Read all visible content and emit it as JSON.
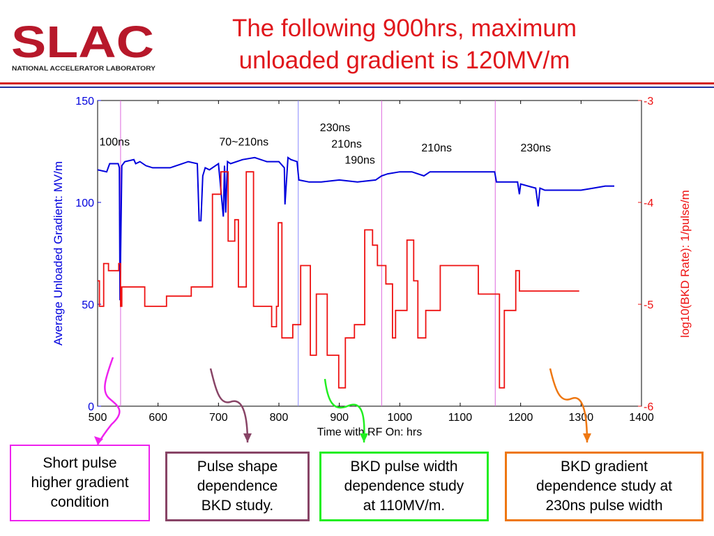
{
  "header": {
    "title_line1": "The following 900hrs, maximum",
    "title_line2": "unloaded gradient is 120MV/m",
    "logo_text": "SLAC",
    "logo_subtext": "NATIONAL ACCELERATOR LABORATORY"
  },
  "callouts": [
    {
      "text": "Short pulse\nhigher gradient\ncondition",
      "color": "#ee22ee"
    },
    {
      "text": "Pulse shape\ndependence\nBKD study.",
      "color": "#884466"
    },
    {
      "text": "BKD pulse width\ndependence study\nat 110MV/m.",
      "color": "#22ee22"
    },
    {
      "text": "BKD gradient\ndependence study at\n230ns pulse width",
      "color": "#ee7711"
    }
  ],
  "chart_data": {
    "type": "line",
    "title": "",
    "xlabel": "Time with RF On: hrs",
    "ylabel": "Average Unloaded Gradient: MV/m",
    "y2label": "log10(BKD Rate): 1/pulse/m",
    "xlim": [
      500,
      1400
    ],
    "ylim": [
      0,
      150
    ],
    "y2lim": [
      -6,
      -3
    ],
    "x_ticks": [
      500,
      600,
      700,
      800,
      900,
      1000,
      1100,
      1200,
      1300,
      1400
    ],
    "y_ticks": [
      0,
      50,
      100,
      150
    ],
    "y2_ticks": [
      -6,
      -5,
      -4,
      -3
    ],
    "x_tick_labels": [
      "500",
      "600",
      "700",
      "800",
      "900",
      "1000",
      "1100",
      "1200",
      "1300",
      "1400"
    ],
    "y_tick_labels": [
      "0",
      "50",
      "100",
      "150"
    ],
    "y2_tick_labels": [
      "-6",
      "-5",
      "-4",
      "-3"
    ],
    "grid": false,
    "colors": {
      "gradient": "#0000dd",
      "bkd": "#ee1111",
      "blue_marker": "#8888ff",
      "magenta_marker": "#dd66dd"
    },
    "annotations": [
      {
        "text": "100ns",
        "x": 528,
        "y": 130
      },
      {
        "text": "70~210ns",
        "x": 742,
        "y": 130
      },
      {
        "text": "230ns",
        "x": 893,
        "y": 137
      },
      {
        "text": "210ns",
        "x": 912,
        "y": 129
      },
      {
        "text": "190ns",
        "x": 934,
        "y": 121
      },
      {
        "text": "210ns",
        "x": 1061,
        "y": 127
      },
      {
        "text": "230ns",
        "x": 1225,
        "y": 127
      }
    ],
    "vertical_markers": [
      {
        "x": 538,
        "color": "magenta"
      },
      {
        "x": 832,
        "color": "blue"
      },
      {
        "x": 970,
        "color": "magenta"
      },
      {
        "x": 1158,
        "color": "magenta"
      }
    ],
    "series": [
      {
        "name": "Average Unloaded Gradient",
        "axis": "left",
        "x": [
          500,
          515,
          520,
          534,
          536,
          537,
          540,
          545,
          560,
          563,
          570,
          580,
          591,
          593,
          610,
          620,
          650,
          665,
          668,
          671,
          674,
          678,
          685,
          700,
          708,
          710,
          712,
          715,
          720,
          740,
          760,
          780,
          800,
          809,
          810,
          815,
          820,
          830,
          833,
          850,
          870,
          900,
          930,
          960,
          970,
          980,
          1000,
          1020,
          1040,
          1050,
          1100,
          1150,
          1157,
          1160,
          1180,
          1195,
          1198,
          1200,
          1225,
          1229,
          1232,
          1240,
          1260,
          1280,
          1300,
          1320,
          1340,
          1355
        ],
        "y": [
          116,
          115,
          119,
          119,
          117,
          52,
          118,
          120,
          121,
          119,
          120,
          118,
          117,
          117,
          117,
          117,
          120,
          119,
          91,
          91,
          113,
          117,
          116,
          119,
          93,
          118,
          95,
          120,
          119,
          121,
          122,
          120,
          120,
          117,
          99,
          122,
          121,
          120,
          111,
          110,
          110,
          111,
          110,
          111,
          113,
          114,
          115,
          115,
          113,
          115,
          115,
          115,
          115,
          110,
          110,
          110,
          104,
          109,
          107,
          98,
          107,
          106,
          106,
          106,
          106,
          107,
          108,
          108
        ]
      },
      {
        "name": "log10(BKD Rate)",
        "axis": "right",
        "x": [
          500,
          503,
          503,
          510,
          510,
          518,
          518,
          535,
          535,
          538,
          538,
          540,
          540,
          578,
          578,
          614,
          614,
          655,
          655,
          690,
          690,
          704,
          704,
          716,
          716,
          727,
          727,
          733,
          733,
          746,
          746,
          758,
          758,
          788,
          788,
          796,
          796,
          799,
          799,
          805,
          805,
          823,
          823,
          836,
          836,
          852,
          852,
          862,
          862,
          880,
          880,
          899,
          899,
          910,
          910,
          925,
          925,
          942,
          942,
          955,
          955,
          963,
          963,
          977,
          977,
          988,
          988,
          993,
          993,
          1012,
          1012,
          1023,
          1023,
          1030,
          1030,
          1043,
          1043,
          1067,
          1067,
          1130,
          1130,
          1165,
          1165,
          1173,
          1173,
          1192,
          1192,
          1198,
          1198,
          1212,
          1212,
          1223,
          1223,
          1258,
          1258,
          1297
        ],
        "y": [
          -4.77,
          -4.77,
          -5.02,
          -5.02,
          -4.6,
          -4.6,
          -4.67,
          -4.67,
          -4.6,
          -4.6,
          -5.02,
          -5.02,
          -4.83,
          -4.83,
          -5.02,
          -5.02,
          -4.92,
          -4.92,
          -4.83,
          -4.83,
          -3.92,
          -3.92,
          -3.7,
          -3.7,
          -4.38,
          -4.38,
          -4.17,
          -4.17,
          -4.83,
          -4.83,
          -3.7,
          -3.7,
          -5.02,
          -5.02,
          -5.22,
          -5.22,
          -5.02,
          -5.02,
          -4.2,
          -4.2,
          -5.33,
          -5.33,
          -5.2,
          -5.2,
          -4.62,
          -4.62,
          -5.5,
          -5.5,
          -4.9,
          -4.9,
          -5.5,
          -5.5,
          -5.82,
          -5.82,
          -5.33,
          -5.33,
          -5.2,
          -5.2,
          -4.27,
          -4.27,
          -4.42,
          -4.42,
          -4.62,
          -4.62,
          -4.8,
          -4.8,
          -5.33,
          -5.33,
          -5.06,
          -5.06,
          -4.37,
          -4.37,
          -4.77,
          -4.77,
          -5.33,
          -5.33,
          -5.06,
          -5.06,
          -4.62,
          -4.62,
          -4.9,
          -4.9,
          -5.82,
          -5.82,
          -5.06,
          -5.06,
          -4.67,
          -4.67,
          -4.87,
          -4.87,
          -4.87,
          -4.87,
          -4.87,
          -4.87,
          -4.87,
          -4.87
        ]
      }
    ]
  }
}
